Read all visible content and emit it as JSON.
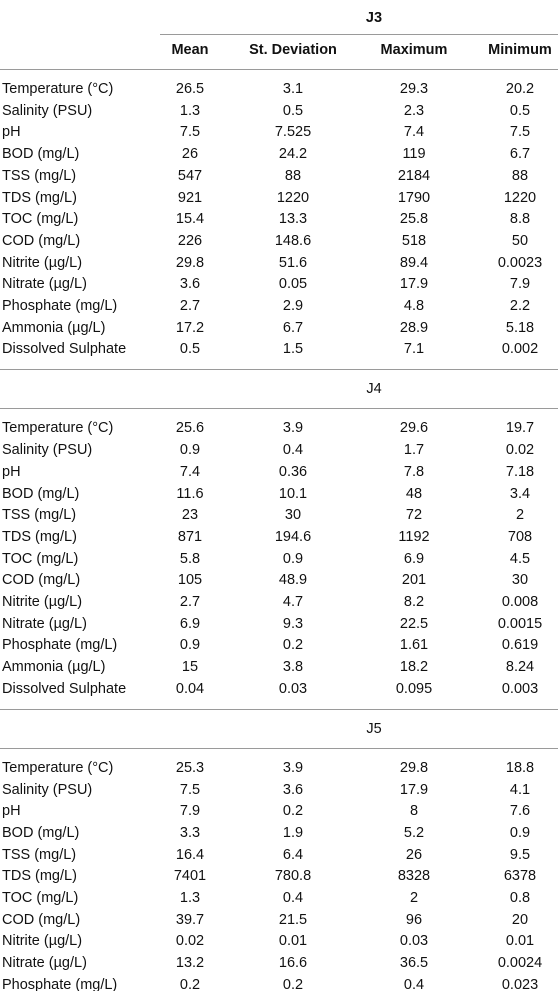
{
  "header": {
    "group": "J3",
    "columns": [
      "Mean",
      "St. Deviation",
      "Maximum",
      "Minimum"
    ]
  },
  "sections": [
    {
      "title": "J3",
      "rows": [
        {
          "label": "Temperature (°C)",
          "values": [
            "26.5",
            "3.1",
            "29.3",
            "20.2"
          ]
        },
        {
          "label": "Salinity (PSU)",
          "values": [
            "1.3",
            "0.5",
            "2.3",
            "0.5"
          ]
        },
        {
          "label": "pH",
          "values": [
            "7.5",
            "7.525",
            "7.4",
            "7.5"
          ]
        },
        {
          "label": "BOD (mg/L)",
          "values": [
            "26",
            "24.2",
            "119",
            "6.7"
          ]
        },
        {
          "label": "TSS (mg/L)",
          "values": [
            "547",
            "88",
            "2184",
            "88"
          ]
        },
        {
          "label": "TDS (mg/L)",
          "values": [
            "921",
            "1220",
            "1790",
            "1220"
          ]
        },
        {
          "label": "TOC (mg/L)",
          "values": [
            "15.4",
            "13.3",
            "25.8",
            "8.8"
          ]
        },
        {
          "label": "COD (mg/L)",
          "values": [
            "226",
            "148.6",
            "518",
            "50"
          ]
        },
        {
          "label": "Nitrite (µg/L)",
          "values": [
            "29.8",
            "51.6",
            "89.4",
            "0.0023"
          ]
        },
        {
          "label": "Nitrate (µg/L)",
          "values": [
            "3.6",
            "0.05",
            "17.9",
            "7.9"
          ]
        },
        {
          "label": "Phosphate (mg/L)",
          "values": [
            "2.7",
            "2.9",
            "4.8",
            "2.2"
          ]
        },
        {
          "label": "Ammonia (µg/L)",
          "values": [
            "17.2",
            "6.7",
            "28.9",
            "5.18"
          ]
        },
        {
          "label": "Dissolved Sulphate",
          "values": [
            "0.5",
            "1.5",
            "7.1",
            "0.002"
          ]
        }
      ]
    },
    {
      "title": "J4",
      "rows": [
        {
          "label": "Temperature (°C)",
          "values": [
            "25.6",
            "3.9",
            "29.6",
            "19.7"
          ]
        },
        {
          "label": "Salinity (PSU)",
          "values": [
            "0.9",
            "0.4",
            "1.7",
            "0.02"
          ]
        },
        {
          "label": "pH",
          "values": [
            "7.4",
            "0.36",
            "7.8",
            "7.18"
          ]
        },
        {
          "label": "BOD (mg/L)",
          "values": [
            "11.6",
            "10.1",
            "48",
            "3.4"
          ]
        },
        {
          "label": "TSS (mg/L)",
          "values": [
            "23",
            "30",
            "72",
            "2"
          ]
        },
        {
          "label": "TDS (mg/L)",
          "values": [
            "871",
            "194.6",
            "1192",
            "708"
          ]
        },
        {
          "label": "TOC (mg/L)",
          "values": [
            "5.8",
            "0.9",
            "6.9",
            "4.5"
          ]
        },
        {
          "label": "COD (mg/L)",
          "values": [
            "105",
            "48.9",
            "201",
            "30"
          ]
        },
        {
          "label": "Nitrite (µg/L)",
          "values": [
            "2.7",
            "4.7",
            "8.2",
            "0.008"
          ]
        },
        {
          "label": "Nitrate (µg/L)",
          "values": [
            "6.9",
            "9.3",
            "22.5",
            "0.0015"
          ]
        },
        {
          "label": "Phosphate (mg/L)",
          "values": [
            "0.9",
            "0.2",
            "1.61",
            "0.619"
          ]
        },
        {
          "label": "Ammonia (µg/L)",
          "values": [
            "15",
            "3.8",
            "18.2",
            "8.24"
          ]
        },
        {
          "label": "Dissolved Sulphate",
          "values": [
            "0.04",
            "0.03",
            "0.095",
            "0.003"
          ]
        }
      ]
    },
    {
      "title": "J5",
      "rows": [
        {
          "label": "Temperature (°C)",
          "values": [
            "25.3",
            "3.9",
            "29.8",
            "18.8"
          ]
        },
        {
          "label": "Salinity (PSU)",
          "values": [
            "7.5",
            "3.6",
            "17.9",
            "4.1"
          ]
        },
        {
          "label": "pH",
          "values": [
            "7.9",
            "0.2",
            "8",
            "7.6"
          ]
        },
        {
          "label": "BOD (mg/L)",
          "values": [
            "3.3",
            "1.9",
            "5.2",
            "0.9"
          ]
        },
        {
          "label": "TSS (mg/L)",
          "values": [
            "16.4",
            "6.4",
            "26",
            "9.5"
          ]
        },
        {
          "label": "TDS (mg/L)",
          "values": [
            "7401",
            "780.8",
            "8328",
            "6378"
          ]
        },
        {
          "label": "TOC (mg/L)",
          "values": [
            "1.3",
            "0.4",
            "2",
            "0.8"
          ]
        },
        {
          "label": "COD (mg/L)",
          "values": [
            "39.7",
            "21.5",
            "96",
            "20"
          ]
        },
        {
          "label": "Nitrite (µg/L)",
          "values": [
            "0.02",
            "0.01",
            "0.03",
            "0.01"
          ]
        },
        {
          "label": "Nitrate (µg/L)",
          "values": [
            "13.2",
            "16.6",
            "36.5",
            "0.0024"
          ]
        },
        {
          "label": "Phosphate (mg/L)",
          "values": [
            "0.2",
            "0.2",
            "0.4",
            "0.023"
          ]
        }
      ]
    }
  ]
}
